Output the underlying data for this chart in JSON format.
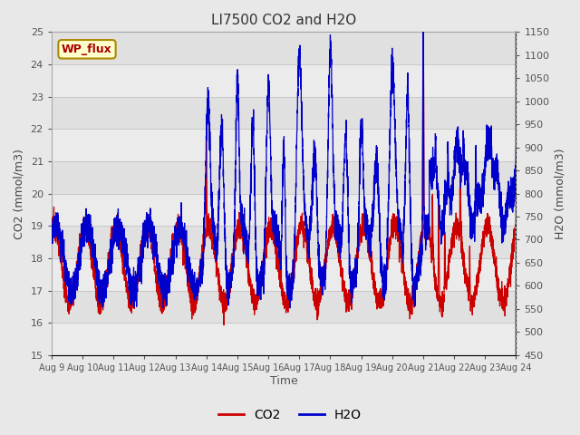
{
  "title": "LI7500 CO2 and H2O",
  "xlabel": "Time",
  "ylabel_left": "CO2 (mmol/m3)",
  "ylabel_right": "H2O (mmol/m3)",
  "watermark": "WP_flux",
  "co2_ylim": [
    15.0,
    25.0
  ],
  "h2o_ylim": [
    450,
    1150
  ],
  "co2_yticks": [
    15.0,
    16.0,
    17.0,
    18.0,
    19.0,
    20.0,
    21.0,
    22.0,
    23.0,
    24.0,
    25.0
  ],
  "h2o_yticks": [
    450,
    500,
    550,
    600,
    650,
    700,
    750,
    800,
    850,
    900,
    950,
    1000,
    1050,
    1100,
    1150
  ],
  "xtick_labels": [
    "Aug 9",
    "Aug 10",
    "Aug 11",
    "Aug 12",
    "Aug 13",
    "Aug 14",
    "Aug 15",
    "Aug 16",
    "Aug 17",
    "Aug 18",
    "Aug 19",
    "Aug 20",
    "Aug 21",
    "Aug 22",
    "Aug 23",
    "Aug 24"
  ],
  "co2_color": "#cc0000",
  "h2o_color": "#0000cc",
  "fig_bg_color": "#e8e8e8",
  "plot_bg_color": "#e0e0e0",
  "watermark_bg": "#ffffcc",
  "watermark_border": "#aa8800",
  "watermark_text_color": "#aa0000",
  "legend_co2_label": "CO2",
  "legend_h2o_label": "H2O",
  "n_days": 15,
  "n_per_day": 288
}
